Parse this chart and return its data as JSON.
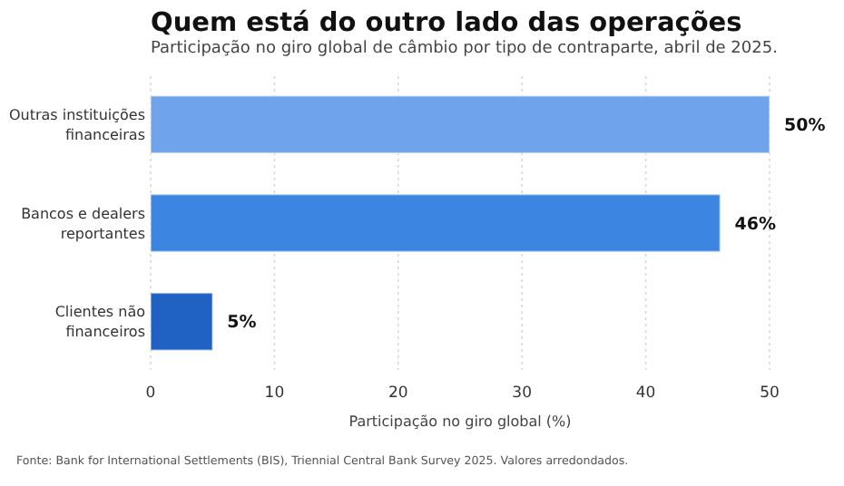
{
  "chart_data": {
    "type": "bar",
    "orientation": "horizontal",
    "title": "Quem está do outro lado das operações",
    "subtitle": "Participação no giro global de câmbio por tipo de contraparte, abril de 2025.",
    "xlabel": "Participação no giro global (%)",
    "categories": [
      "Outras instituições financeiras",
      "Bancos e dealers reportantes",
      "Clientes não financeiros"
    ],
    "values": [
      50,
      46,
      5
    ],
    "colors": [
      "#6fa3ec",
      "#3c85e0",
      "#1f62c4"
    ],
    "value_labels": [
      "50%",
      "46%",
      "5%"
    ],
    "xlim": [
      0,
      50
    ],
    "xticks": [
      0,
      10,
      20,
      30,
      40,
      50
    ],
    "grid": "x",
    "annotations": [
      "Fonte: Bank for International Settlements (BIS), Triennial Central Bank Survey 2025. Valores arredondados."
    ]
  }
}
